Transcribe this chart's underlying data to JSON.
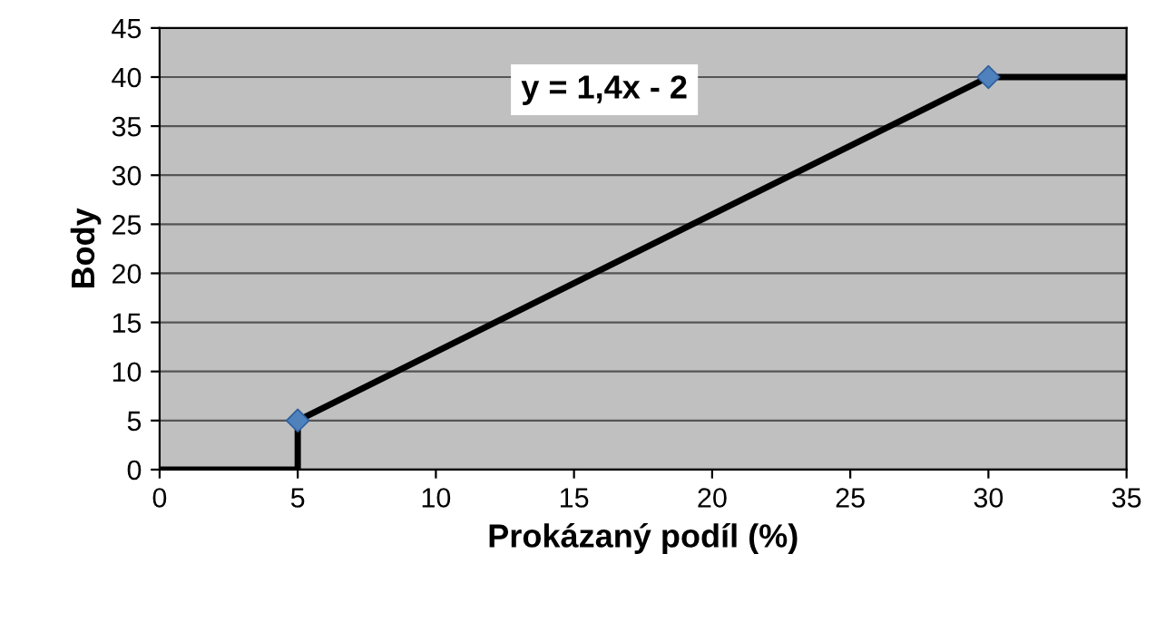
{
  "chart_data": {
    "type": "line",
    "xlabel": "Prokázaný podíl (%)",
    "ylabel": "Body",
    "series": [
      {
        "color": "#000000",
        "x": [
          0,
          5,
          5,
          30,
          35
        ],
        "values": [
          0,
          0,
          5,
          40,
          40
        ],
        "marker": "none",
        "line_style": "solid"
      },
      {
        "type": "scatter",
        "color": "#4f81bd",
        "x": [
          5,
          30
        ],
        "values": [
          5,
          40
        ],
        "marker": "diamond"
      }
    ],
    "xlim": [
      0,
      35
    ],
    "xticks": [
      0,
      5,
      10,
      15,
      20,
      25,
      30,
      35
    ],
    "ylim": [
      0,
      45
    ],
    "yticks": [
      0,
      5,
      10,
      15,
      20,
      25,
      30,
      35,
      40,
      45
    ],
    "grid": "y",
    "legend": false,
    "annotations": [
      "y = 1,4x - 2"
    ]
  }
}
